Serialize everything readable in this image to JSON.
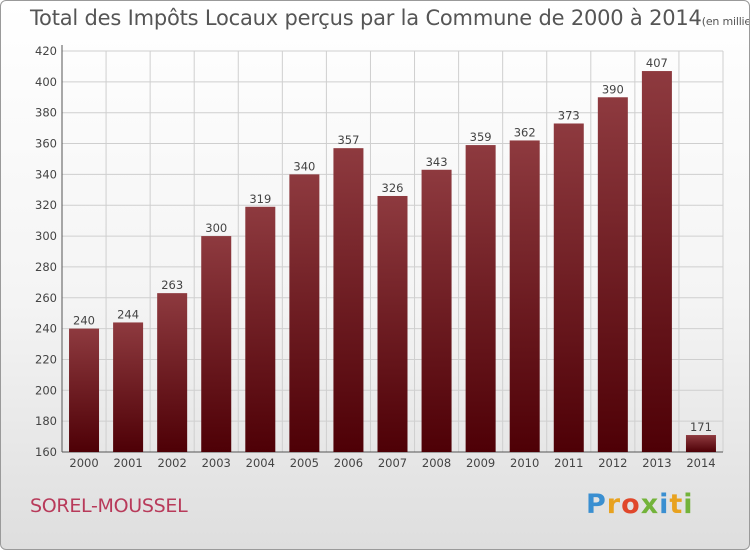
{
  "title": "Total des Impôts Locaux perçus par la Commune de 2000 à 2014",
  "title_unit": "(en milliers d'€)",
  "commune": "SOREL-MOUSSEL",
  "logo": {
    "text": "Proxiti",
    "letters": [
      "P",
      "r",
      "o",
      "x",
      "i",
      "t",
      "i"
    ],
    "colors": [
      "#3a8fd1",
      "#e8a21f",
      "#e0472b",
      "#73b33a",
      "#3a8fd1",
      "#e8a21f",
      "#73b33a"
    ]
  },
  "colors": {
    "bar_top": "#8e3a3f",
    "bar_bottom": "#4e0006",
    "grid": "#cfcfcf",
    "accent": "#b83a5a"
  },
  "chart_data": {
    "type": "bar",
    "title": "Total des Impôts Locaux perçus par la Commune de 2000 à 2014",
    "ylabel": "en milliers d'€",
    "xlabel": "",
    "categories": [
      "2000",
      "2001",
      "2002",
      "2003",
      "2004",
      "2005",
      "2006",
      "2007",
      "2008",
      "2009",
      "2010",
      "2011",
      "2012",
      "2013",
      "2014"
    ],
    "values": [
      240,
      244,
      263,
      300,
      319,
      340,
      357,
      326,
      343,
      359,
      362,
      373,
      390,
      407,
      171
    ],
    "ylim": [
      160,
      420
    ],
    "yticks": [
      160,
      180,
      200,
      220,
      240,
      260,
      280,
      300,
      320,
      340,
      360,
      380,
      400,
      420
    ],
    "grid": true
  }
}
